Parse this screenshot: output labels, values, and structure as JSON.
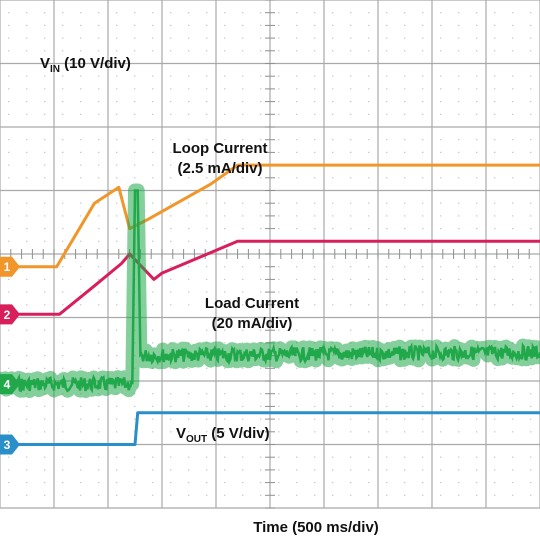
{
  "chart_data": {
    "type": "line",
    "instrument": "oscilloscope",
    "xlabel": "Time (500 ms/div)",
    "grid": true,
    "divisions": {
      "x": 10,
      "y": 8
    },
    "series": [
      {
        "marker": "1",
        "name_main": "V",
        "name_sub": "IN",
        "name_rest": " (10 V/div)",
        "color": "#f0962a",
        "points": [
          [
            0,
            4.2
          ],
          [
            1.05,
            4.2
          ],
          [
            1.75,
            3.2
          ],
          [
            2.2,
            2.95
          ],
          [
            2.4,
            3.6
          ],
          [
            2.75,
            3.45
          ],
          [
            3.9,
            2.9
          ],
          [
            4.4,
            2.6
          ],
          [
            10,
            2.6
          ]
        ]
      },
      {
        "marker": "2",
        "name": "Loop Current",
        "name_scale": "(2.5 mA/div)",
        "color": "#d81e5b",
        "points": [
          [
            0,
            4.95
          ],
          [
            1.1,
            4.95
          ],
          [
            1.75,
            4.5
          ],
          [
            2.25,
            4.15
          ],
          [
            2.4,
            4.0
          ],
          [
            2.85,
            4.4
          ],
          [
            3.0,
            4.3
          ],
          [
            4.4,
            3.8
          ],
          [
            10,
            3.8
          ]
        ]
      },
      {
        "marker": "4",
        "name": "Load Current",
        "name_scale": "(20 mA/div)",
        "color": "#20a84a",
        "noisy": true,
        "points": [
          [
            0,
            6.05
          ],
          [
            2.45,
            6.05
          ],
          [
            2.5,
            3.0
          ],
          [
            2.55,
            3.0
          ],
          [
            2.6,
            5.6
          ],
          [
            10,
            5.55
          ]
        ]
      },
      {
        "marker": "3",
        "name_main": "V",
        "name_sub": "OUT",
        "name_rest": " (5 V/div)",
        "color": "#2a8fc8",
        "points": [
          [
            0,
            7.0
          ],
          [
            2.5,
            7.0
          ],
          [
            2.55,
            6.5
          ],
          [
            10,
            6.5
          ]
        ]
      }
    ]
  }
}
